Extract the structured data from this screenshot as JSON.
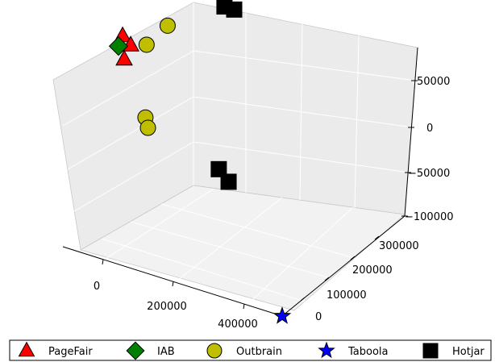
{
  "chart_data": {
    "type": "scatter",
    "title": "",
    "xlabel": "",
    "ylabel": "",
    "zlabel": "",
    "grid": true,
    "legend_placement": "bottom",
    "x_ticks": [
      "0",
      "200000",
      "400000"
    ],
    "y_ticks": [
      "0",
      "100000",
      "200000",
      "300000"
    ],
    "z_ticks": [
      "50000",
      "0",
      "−50000",
      "−100000"
    ],
    "series": [
      {
        "name": "PageFair",
        "marker": "triangle",
        "color": "#ff0000",
        "points": [
          [
            -120000,
            340000,
            0
          ],
          [
            -100000,
            335000,
            -5000
          ],
          [
            -110000,
            330000,
            -20000
          ]
        ]
      },
      {
        "name": "IAB",
        "marker": "diamond",
        "color": "#008000",
        "points": [
          [
            -125000,
            335000,
            -10000
          ]
        ]
      },
      {
        "name": "Outbrain",
        "marker": "circle",
        "color": "#bfbf00",
        "points": [
          [
            -20000,
            330000,
            30000
          ],
          [
            -60000,
            325000,
            5000
          ],
          [
            -60000,
            320000,
            -70000
          ],
          [
            -55000,
            320000,
            -80000
          ]
        ]
      },
      {
        "name": "Taboola",
        "marker": "star",
        "color": "#0000ff",
        "points": [
          [
            450000,
            0,
            -100000
          ]
        ]
      },
      {
        "name": "Hotjar",
        "marker": "square",
        "color": "#000000",
        "points": [
          [
            90000,
            340000,
            65000
          ],
          [
            110000,
            340000,
            65000
          ],
          [
            90000,
            320000,
            -100000
          ],
          [
            110000,
            320000,
            -110000
          ]
        ]
      }
    ]
  }
}
